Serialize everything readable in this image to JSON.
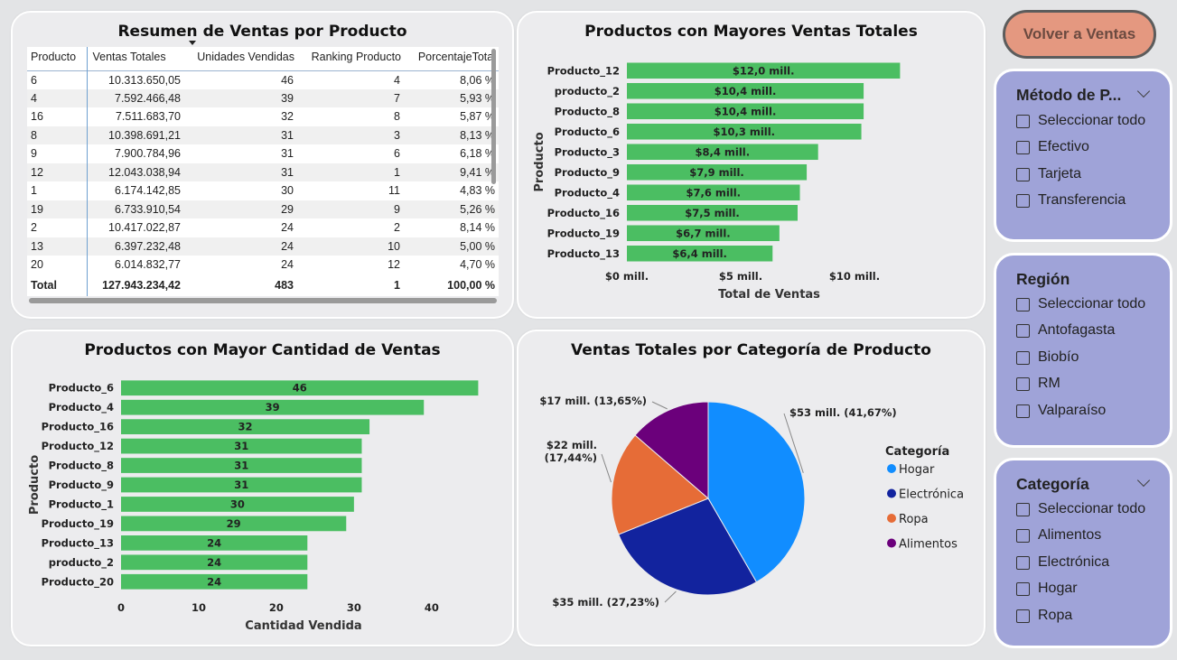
{
  "back_button": {
    "label": "Volver a Ventas",
    "color": "#e49880"
  },
  "table_card": {
    "title": "Resumen de Ventas por Producto",
    "columns": [
      "Producto",
      "Ventas Totales",
      "Unidades Vendidas",
      "Ranking Producto",
      "PorcentajeTotal"
    ],
    "rows": [
      [
        "6",
        "10.313.650,05",
        "46",
        "4",
        "8,06 %"
      ],
      [
        "4",
        "7.592.466,48",
        "39",
        "7",
        "5,93 %"
      ],
      [
        "16",
        "7.511.683,70",
        "32",
        "8",
        "5,87 %"
      ],
      [
        "8",
        "10.398.691,21",
        "31",
        "3",
        "8,13 %"
      ],
      [
        "9",
        "7.900.784,96",
        "31",
        "6",
        "6,18 %"
      ],
      [
        "12",
        "12.043.038,94",
        "31",
        "1",
        "9,41 %"
      ],
      [
        "1",
        "6.174.142,85",
        "30",
        "11",
        "4,83 %"
      ],
      [
        "19",
        "6.733.910,54",
        "29",
        "9",
        "5,26 %"
      ],
      [
        "2",
        "10.417.022,87",
        "24",
        "2",
        "8,14 %"
      ],
      [
        "13",
        "6.397.232,48",
        "24",
        "10",
        "5,00 %"
      ],
      [
        "20",
        "6.014.832,77",
        "24",
        "12",
        "4,70 %"
      ]
    ],
    "total": [
      "Total",
      "127.943.234,42",
      "483",
      "1",
      "100,00 %"
    ]
  },
  "chart_data": [
    {
      "type": "bar",
      "orientation": "horizontal",
      "title": "Productos con Mayores Ventas Totales",
      "xlabel": "Total de Ventas",
      "ylabel": "Producto",
      "categories": [
        "Producto_12",
        "producto_2",
        "Producto_8",
        "Producto_6",
        "Producto_3",
        "Producto_9",
        "Producto_4",
        "Producto_16",
        "Producto_19",
        "Producto_13"
      ],
      "values": [
        12.0,
        10.4,
        10.4,
        10.3,
        8.4,
        7.9,
        7.6,
        7.5,
        6.7,
        6.4
      ],
      "data_labels": [
        "$12,0 mill.",
        "$10,4 mill.",
        "$10,4 mill.",
        "$10,3 mill.",
        "$8,4 mill.",
        "$7,9 mill.",
        "$7,6 mill.",
        "$7,5 mill.",
        "$6,7 mill.",
        "$6,4 mill."
      ],
      "xticks": [
        0,
        5,
        10
      ],
      "xtick_labels": [
        "$0 mill.",
        "$5 mill.",
        "$10 mill."
      ],
      "xlim": [
        0,
        12.5
      ],
      "color": "#4bbe62"
    },
    {
      "type": "bar",
      "orientation": "horizontal",
      "title": "Productos con Mayor Cantidad de Ventas",
      "xlabel": "Cantidad Vendida",
      "ylabel": "Producto",
      "categories": [
        "Producto_6",
        "Producto_4",
        "Producto_16",
        "Producto_12",
        "Producto_8",
        "Producto_9",
        "Producto_1",
        "Producto_19",
        "Producto_13",
        "producto_2",
        "Producto_20"
      ],
      "values": [
        46,
        39,
        32,
        31,
        31,
        31,
        30,
        29,
        24,
        24,
        24
      ],
      "xticks": [
        0,
        10,
        20,
        30,
        40
      ],
      "xlim": [
        0,
        47
      ],
      "color": "#4bbe62"
    },
    {
      "type": "pie",
      "title": "Ventas Totales por Categoría de Producto",
      "legend_title": "Categoría",
      "legend_position": "right",
      "slices": [
        {
          "name": "Hogar",
          "value": 41.67,
          "label": "$53 mill. (41,67%)",
          "color": "#118dff"
        },
        {
          "name": "Electrónica",
          "value": 27.23,
          "label": "$35 mill. (27,23%)",
          "color": "#12239e"
        },
        {
          "name": "Ropa",
          "value": 17.44,
          "label_lines": [
            "$22 mill.",
            "(17,44%)"
          ],
          "color": "#e66c37"
        },
        {
          "name": "Alimentos",
          "value": 13.65,
          "label": "$17 mill. (13,65%)",
          "color": "#6b007b"
        }
      ]
    }
  ],
  "slicers": [
    {
      "title": "Método de P...",
      "options": [
        "Seleccionar todo",
        "Efectivo",
        "Tarjeta",
        "Transferencia"
      ]
    },
    {
      "title": "Región",
      "options": [
        "Seleccionar todo",
        "Antofagasta",
        "Biobío",
        "RM",
        "Valparaíso"
      ]
    },
    {
      "title": "Categoría",
      "options": [
        "Seleccionar todo",
        "Alimentos",
        "Electrónica",
        "Hogar",
        "Ropa"
      ]
    }
  ],
  "colors": {
    "slicer_bg": "#9fa3d8",
    "bar": "#4bbe62",
    "card_bg": "#ececee"
  }
}
